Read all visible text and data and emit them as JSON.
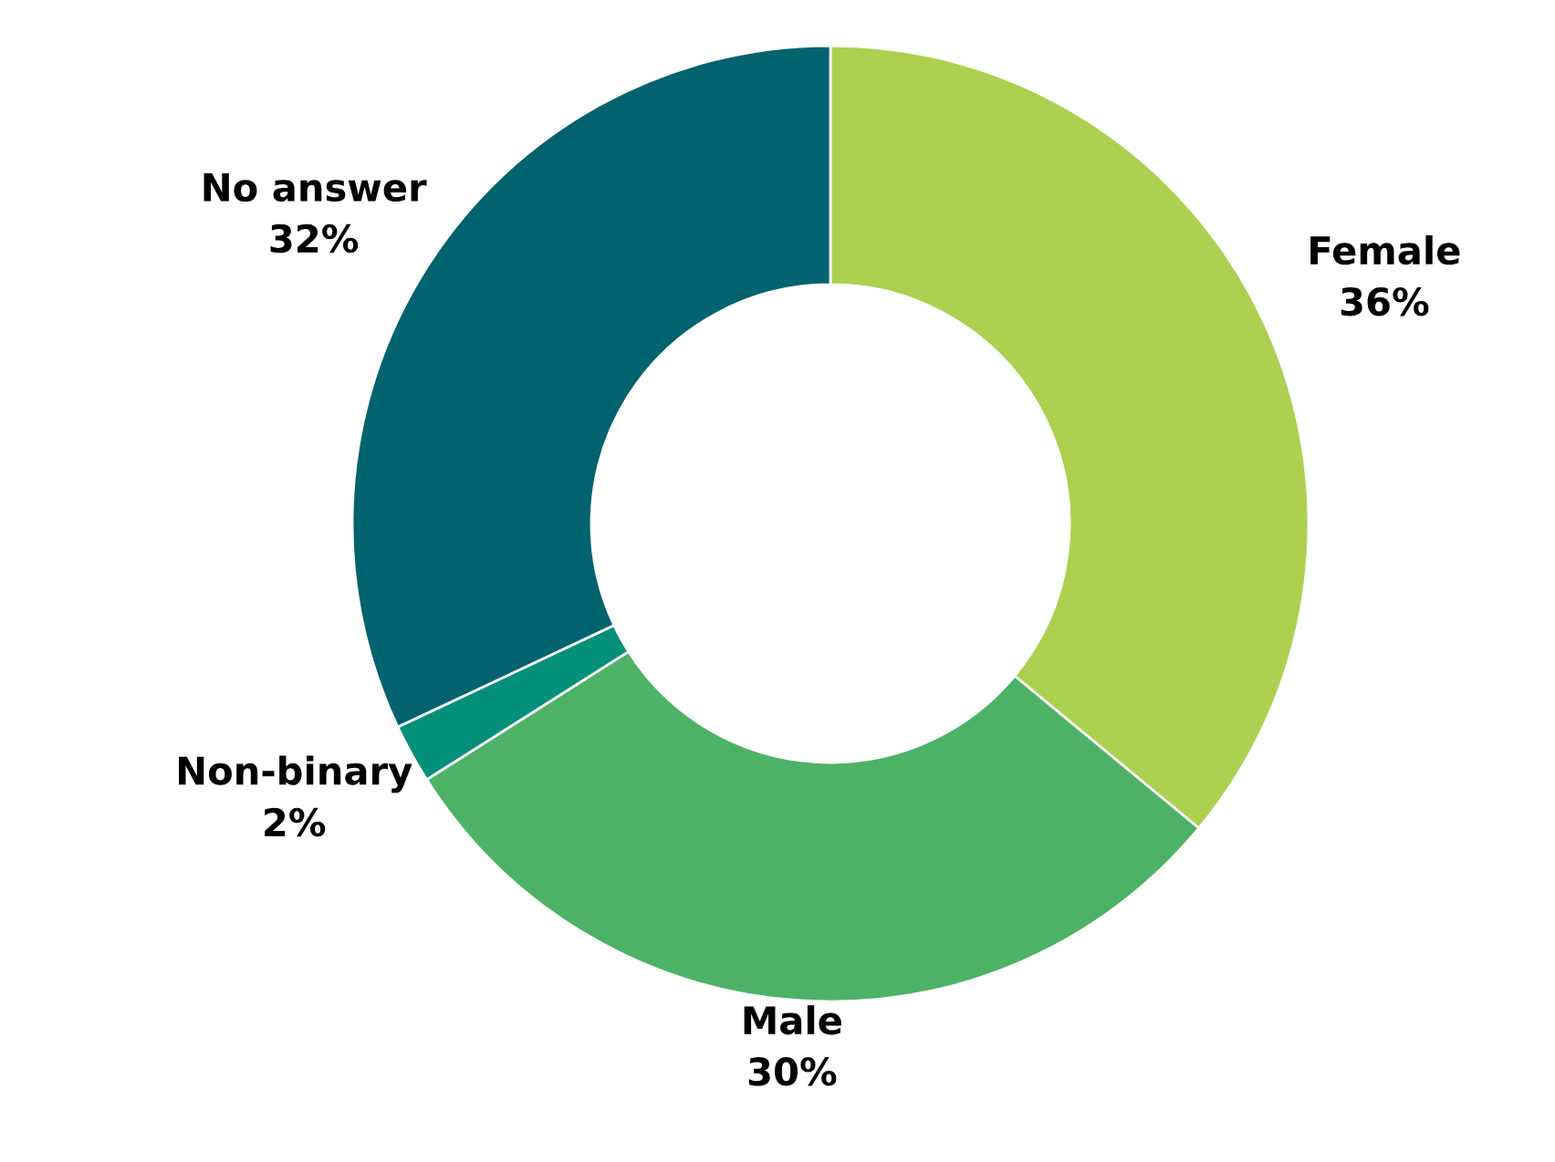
{
  "chart_data": {
    "type": "donut",
    "categories": [
      "Female",
      "Male",
      "Non-binary",
      "No answer"
    ],
    "values": [
      36,
      30,
      2,
      32
    ],
    "colors": [
      "#acd04f",
      "#4eb266",
      "#02907a",
      "#02636e"
    ],
    "value_labels": [
      "36%",
      "30%",
      "2%",
      "32%"
    ],
    "legend": false
  }
}
